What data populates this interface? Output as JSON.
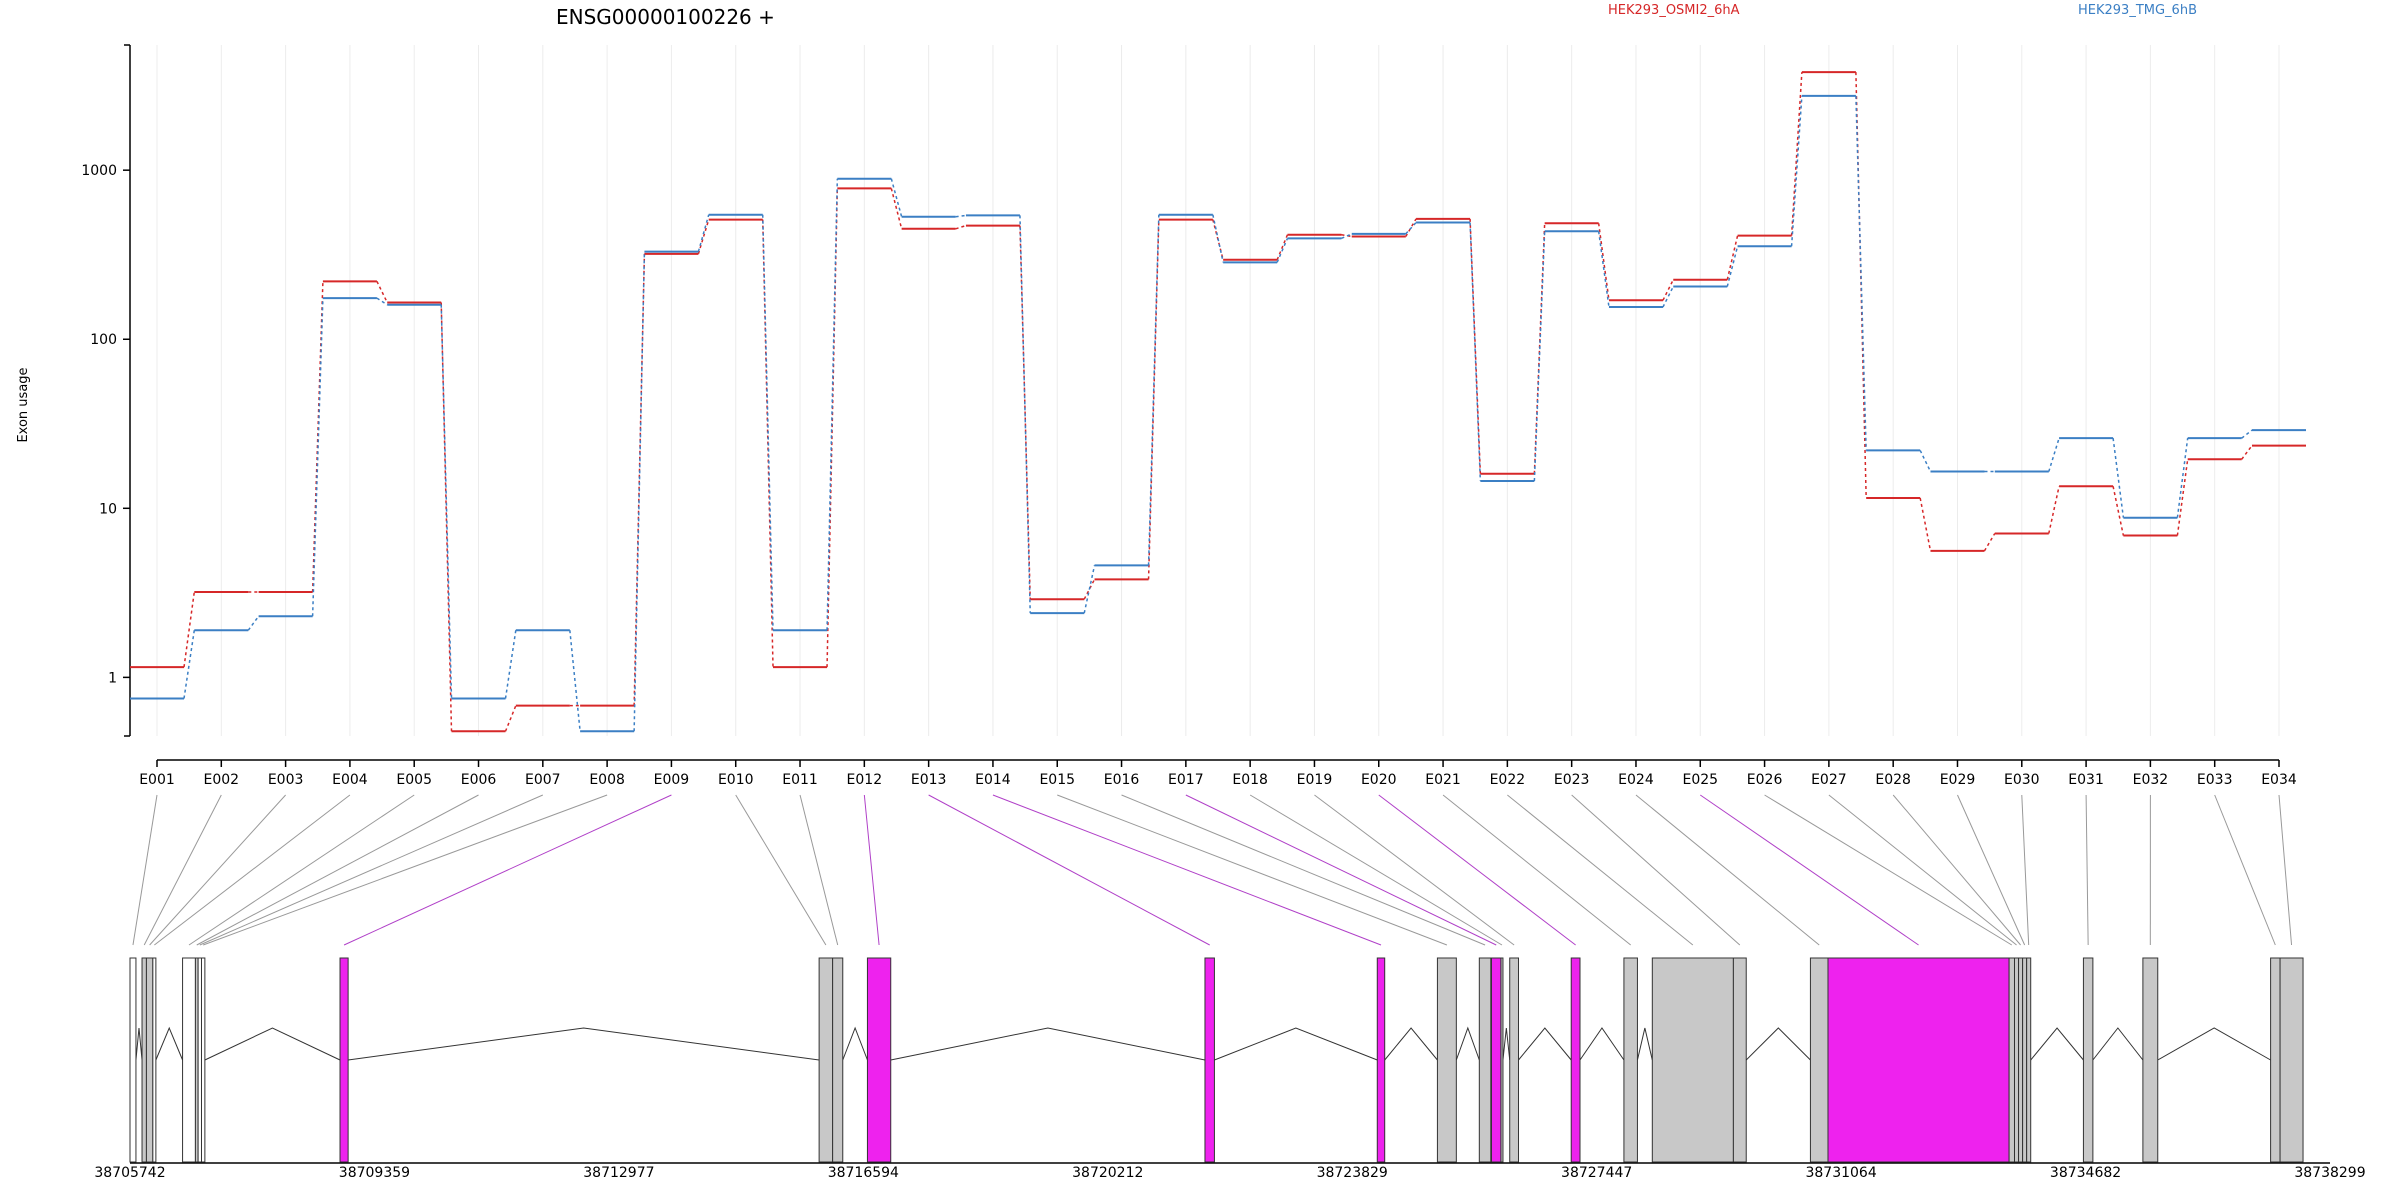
{
  "chart_data": {
    "type": "line",
    "title": "ENSG00000100226 +",
    "ylabel": "Exon usage",
    "y_scale": "log",
    "ylim": [
      0.45,
      5500
    ],
    "y_ticks": [
      1,
      10,
      100,
      1000
    ],
    "y_tick_labels": [
      "1",
      "10",
      "100",
      "1000"
    ],
    "legend_placement": "top",
    "grid": "vertical lines at exons",
    "categories": [
      "E001",
      "E002",
      "E003",
      "E004",
      "E005",
      "E006",
      "E007",
      "E008",
      "E009",
      "E010",
      "E011",
      "E012",
      "E013",
      "E014",
      "E015",
      "E016",
      "E017",
      "E018",
      "E019",
      "E020",
      "E021",
      "E022",
      "E023",
      "E024",
      "E025",
      "E026",
      "E027",
      "E028",
      "E029",
      "E030",
      "E031",
      "E032",
      "E033",
      "E034"
    ],
    "series": [
      {
        "name": "HEK293_OSMI2_6hA",
        "color": "#d62728",
        "values": [
          1.15,
          3.2,
          3.2,
          220,
          165,
          0.48,
          0.68,
          0.68,
          320,
          510,
          1.15,
          780,
          450,
          470,
          2.9,
          3.8,
          510,
          295,
          415,
          405,
          515,
          16,
          485,
          170,
          225,
          410,
          3800,
          11.5,
          5.6,
          7.1,
          13.5,
          6.9,
          19.5,
          23.5
        ]
      },
      {
        "name": "HEK293_TMG_6hB",
        "color": "#3b7fc4",
        "values": [
          0.75,
          1.9,
          2.3,
          175,
          160,
          0.75,
          1.9,
          0.48,
          330,
          545,
          1.9,
          890,
          530,
          540,
          2.4,
          4.6,
          545,
          285,
          395,
          420,
          490,
          14.5,
          435,
          155,
          205,
          355,
          2750,
          22,
          16.5,
          16.5,
          26,
          8.8,
          26,
          29
        ]
      }
    ],
    "gene_model": {
      "coordinate_labels": [
        "38705742",
        "38709359",
        "38712977",
        "38716594",
        "38720212",
        "38723829",
        "38727447",
        "38731064",
        "38734682",
        "38738299"
      ],
      "coordinate_range": [
        38705742,
        38738299
      ],
      "normal_color": "#c8c8c8",
      "highlight_color": "#ee22ee",
      "first_exons_color": "#ffffff",
      "exons": [
        {
          "id": "E001",
          "start": 38705742,
          "end": 38705830,
          "kind": "first"
        },
        {
          "id": "E002",
          "start": 38705920,
          "end": 38705985,
          "kind": "normal"
        },
        {
          "id": "E003",
          "start": 38705985,
          "end": 38706080,
          "kind": "normal"
        },
        {
          "id": "E004",
          "start": 38706080,
          "end": 38706125,
          "kind": "first"
        },
        {
          "id": "E005",
          "start": 38706520,
          "end": 38706710,
          "kind": "first"
        },
        {
          "id": "E006",
          "start": 38706710,
          "end": 38706750,
          "kind": "normal"
        },
        {
          "id": "E007",
          "start": 38706750,
          "end": 38706800,
          "kind": "first"
        },
        {
          "id": "E008",
          "start": 38706800,
          "end": 38706850,
          "kind": "first"
        },
        {
          "id": "E009",
          "start": 38708850,
          "end": 38708970,
          "kind": "highlight"
        },
        {
          "id": "E010",
          "start": 38715940,
          "end": 38716140,
          "kind": "normal"
        },
        {
          "id": "E011",
          "start": 38716140,
          "end": 38716290,
          "kind": "normal"
        },
        {
          "id": "E012",
          "start": 38716655,
          "end": 38717000,
          "kind": "highlight"
        },
        {
          "id": "E013",
          "start": 38721650,
          "end": 38721790,
          "kind": "highlight"
        },
        {
          "id": "E014",
          "start": 38724200,
          "end": 38724310,
          "kind": "highlight"
        },
        {
          "id": "E015",
          "start": 38725090,
          "end": 38725370,
          "kind": "normal"
        },
        {
          "id": "E016",
          "start": 38725710,
          "end": 38725880,
          "kind": "normal"
        },
        {
          "id": "E017",
          "start": 38725890,
          "end": 38726030,
          "kind": "highlight"
        },
        {
          "id": "E018",
          "start": 38726030,
          "end": 38726060,
          "kind": "normal"
        },
        {
          "id": "E019",
          "start": 38726160,
          "end": 38726290,
          "kind": "normal"
        },
        {
          "id": "E020",
          "start": 38727070,
          "end": 38727200,
          "kind": "highlight"
        },
        {
          "id": "E021",
          "start": 38727850,
          "end": 38728050,
          "kind": "normal"
        },
        {
          "id": "E022",
          "start": 38728270,
          "end": 38729470,
          "kind": "normal"
        },
        {
          "id": "E023",
          "start": 38729470,
          "end": 38729660,
          "kind": "normal"
        },
        {
          "id": "E024",
          "start": 38730610,
          "end": 38730870,
          "kind": "normal"
        },
        {
          "id": "E025",
          "start": 38730870,
          "end": 38733550,
          "kind": "highlight"
        },
        {
          "id": "E026",
          "start": 38733550,
          "end": 38733630,
          "kind": "normal"
        },
        {
          "id": "E027",
          "start": 38733630,
          "end": 38733690,
          "kind": "normal"
        },
        {
          "id": "E028",
          "start": 38733690,
          "end": 38733750,
          "kind": "normal"
        },
        {
          "id": "E029",
          "start": 38733750,
          "end": 38733810,
          "kind": "normal"
        },
        {
          "id": "E030",
          "start": 38733810,
          "end": 38733870,
          "kind": "normal"
        },
        {
          "id": "E031",
          "start": 38734650,
          "end": 38734790,
          "kind": "normal"
        },
        {
          "id": "E032",
          "start": 38735530,
          "end": 38735750,
          "kind": "normal"
        },
        {
          "id": "E033",
          "start": 38737420,
          "end": 38737560,
          "kind": "normal"
        },
        {
          "id": "E034",
          "start": 38737560,
          "end": 38737900,
          "kind": "normal"
        }
      ]
    }
  }
}
